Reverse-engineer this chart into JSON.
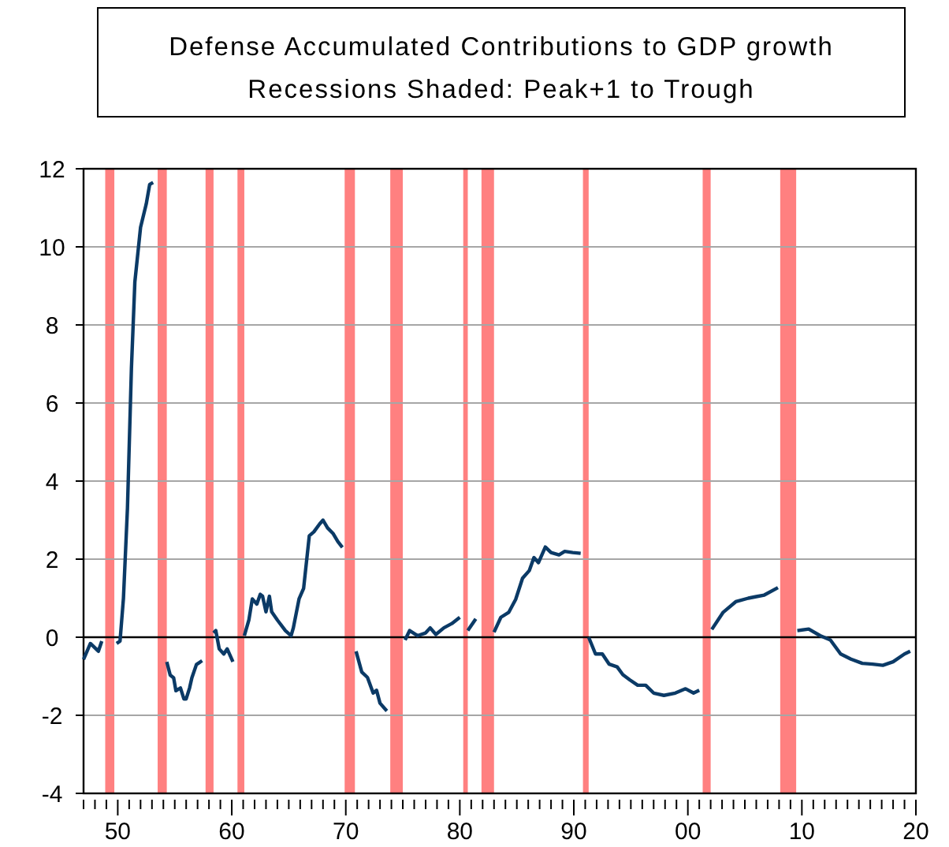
{
  "chart_data": {
    "type": "line",
    "title": "Defense Accumulated Contributions to GDP growth",
    "subtitle": "Recessions Shaded: Peak+1 to Trough",
    "series": [
      {
        "color": "#0b3a66",
        "x": [
          1947.0,
          1947.6,
          1948.1,
          1948.3,
          1948.6,
          1949.3,
          1949.9,
          1950.2,
          1950.5,
          1950.85,
          1951.2,
          1951.5,
          1952.0,
          1952.5,
          1952.8,
          1953.1,
          1953.9,
          1954.3,
          1954.6,
          1954.9,
          1955.1,
          1955.5,
          1955.8,
          1956.0,
          1956.3,
          1956.5,
          1956.9,
          1957.4,
          1958.0,
          1958.4,
          1958.6,
          1958.9,
          1959.3,
          1959.6,
          1960.1,
          1960.8,
          1961.1,
          1961.5,
          1961.8,
          1962.2,
          1962.5,
          1962.7,
          1963.0,
          1963.3,
          1963.5,
          1964.0,
          1964.7,
          1965.2,
          1965.4,
          1965.9,
          1966.3,
          1966.8,
          1967.2,
          1967.7,
          1968.0,
          1968.4,
          1968.9,
          1969.3,
          1969.7,
          1970.3,
          1970.9,
          1971.4,
          1971.9,
          1972.4,
          1972.7,
          1973.0,
          1973.6,
          1974.4,
          1975.2,
          1975.6,
          1976.3,
          1977.0,
          1977.4,
          1977.9,
          1978.6,
          1979.3,
          1980.0,
          1980.4,
          1980.7,
          1981.4,
          1982.4,
          1983.0,
          1983.6,
          1984.3,
          1984.9,
          1985.5,
          1986.1,
          1986.5,
          1986.9,
          1987.5,
          1988.0,
          1988.7,
          1989.2,
          1989.9,
          1990.6,
          1991.0,
          1991.3,
          1991.9,
          1992.5,
          1993.1,
          1993.8,
          1994.3,
          1994.9,
          1995.6,
          1996.3,
          1997.0,
          1997.9,
          1998.9,
          1999.8,
          2000.5,
          2001.0,
          2001.6,
          2002.1,
          2003.1,
          2004.2,
          2005.3,
          2006.0,
          2006.7,
          2007.9,
          2008.8,
          2009.6,
          2010.6,
          2011.6,
          2012.5,
          2013.4,
          2014.3,
          2015.3,
          2016.2,
          2017.1,
          2018.0,
          2019.0,
          2019.5
        ],
        "values": [
          -0.57,
          -0.16,
          -0.3,
          -0.36,
          -0.1,
          null,
          -0.16,
          -0.1,
          1.0,
          3.3,
          6.9,
          9.1,
          10.5,
          11.1,
          11.6,
          11.65,
          null,
          -0.63,
          -0.97,
          -1.04,
          -1.37,
          -1.3,
          -1.58,
          -1.58,
          -1.3,
          -1.04,
          -0.7,
          -0.6,
          null,
          0.11,
          0.17,
          -0.3,
          -0.43,
          -0.3,
          -0.63,
          null,
          0.04,
          0.44,
          0.98,
          0.85,
          1.1,
          1.05,
          0.65,
          1.05,
          0.65,
          0.44,
          0.17,
          0.04,
          0.24,
          0.98,
          1.25,
          2.6,
          2.7,
          2.9,
          3.0,
          2.8,
          2.65,
          2.45,
          2.3,
          null,
          -0.36,
          -0.89,
          -1.03,
          -1.43,
          -1.36,
          -1.69,
          -1.89,
          null,
          -0.07,
          0.17,
          0.04,
          0.11,
          0.24,
          0.07,
          0.24,
          0.35,
          0.51,
          null,
          0.17,
          0.47,
          null,
          0.13,
          0.51,
          0.64,
          0.97,
          1.51,
          1.71,
          2.04,
          1.91,
          2.31,
          2.17,
          2.11,
          2.2,
          2.17,
          2.15,
          null,
          0.0,
          -0.43,
          -0.43,
          -0.69,
          -0.76,
          -0.96,
          -1.09,
          -1.23,
          -1.23,
          -1.43,
          -1.49,
          -1.43,
          -1.32,
          -1.43,
          -1.36,
          null,
          0.2,
          0.64,
          0.91,
          1.0,
          1.04,
          1.08,
          1.27,
          null,
          0.17,
          0.21,
          0.04,
          -0.07,
          -0.43,
          -0.56,
          -0.67,
          -0.69,
          -0.72,
          -0.63,
          -0.43,
          -0.36
        ]
      }
    ],
    "xlim": [
      1947,
      2020
    ],
    "xticks": [
      {
        "value": 1947,
        "label": null
      },
      {
        "value": 1948,
        "label": null
      },
      {
        "value": 1949,
        "label": null
      },
      {
        "value": 1950,
        "label": "50"
      },
      {
        "value": 1951,
        "label": null
      },
      {
        "value": 1952,
        "label": null
      },
      {
        "value": 1953,
        "label": null
      },
      {
        "value": 1954,
        "label": null
      },
      {
        "value": 1955,
        "label": null
      },
      {
        "value": 1956,
        "label": null
      },
      {
        "value": 1957,
        "label": null
      },
      {
        "value": 1958,
        "label": null
      },
      {
        "value": 1959,
        "label": null
      },
      {
        "value": 1960,
        "label": "60"
      },
      {
        "value": 1961,
        "label": null
      },
      {
        "value": 1962,
        "label": null
      },
      {
        "value": 1963,
        "label": null
      },
      {
        "value": 1964,
        "label": null
      },
      {
        "value": 1965,
        "label": null
      },
      {
        "value": 1966,
        "label": null
      },
      {
        "value": 1967,
        "label": null
      },
      {
        "value": 1968,
        "label": null
      },
      {
        "value": 1969,
        "label": null
      },
      {
        "value": 1970,
        "label": "70"
      },
      {
        "value": 1971,
        "label": null
      },
      {
        "value": 1972,
        "label": null
      },
      {
        "value": 1973,
        "label": null
      },
      {
        "value": 1974,
        "label": null
      },
      {
        "value": 1975,
        "label": null
      },
      {
        "value": 1976,
        "label": null
      },
      {
        "value": 1977,
        "label": null
      },
      {
        "value": 1978,
        "label": null
      },
      {
        "value": 1979,
        "label": null
      },
      {
        "value": 1980,
        "label": "80"
      },
      {
        "value": 1981,
        "label": null
      },
      {
        "value": 1982,
        "label": null
      },
      {
        "value": 1983,
        "label": null
      },
      {
        "value": 1984,
        "label": null
      },
      {
        "value": 1985,
        "label": null
      },
      {
        "value": 1986,
        "label": null
      },
      {
        "value": 1987,
        "label": null
      },
      {
        "value": 1988,
        "label": null
      },
      {
        "value": 1989,
        "label": null
      },
      {
        "value": 1990,
        "label": "90"
      },
      {
        "value": 1991,
        "label": null
      },
      {
        "value": 1992,
        "label": null
      },
      {
        "value": 1993,
        "label": null
      },
      {
        "value": 1994,
        "label": null
      },
      {
        "value": 1995,
        "label": null
      },
      {
        "value": 1996,
        "label": null
      },
      {
        "value": 1997,
        "label": null
      },
      {
        "value": 1998,
        "label": null
      },
      {
        "value": 1999,
        "label": null
      },
      {
        "value": 2000,
        "label": "00"
      },
      {
        "value": 2001,
        "label": null
      },
      {
        "value": 2002,
        "label": null
      },
      {
        "value": 2003,
        "label": null
      },
      {
        "value": 2004,
        "label": null
      },
      {
        "value": 2005,
        "label": null
      },
      {
        "value": 2006,
        "label": null
      },
      {
        "value": 2007,
        "label": null
      },
      {
        "value": 2008,
        "label": null
      },
      {
        "value": 2009,
        "label": null
      },
      {
        "value": 2010,
        "label": "10"
      },
      {
        "value": 2011,
        "label": null
      },
      {
        "value": 2012,
        "label": null
      },
      {
        "value": 2013,
        "label": null
      },
      {
        "value": 2014,
        "label": null
      },
      {
        "value": 2015,
        "label": null
      },
      {
        "value": 2016,
        "label": null
      },
      {
        "value": 2017,
        "label": null
      },
      {
        "value": 2018,
        "label": null
      },
      {
        "value": 2019,
        "label": null
      },
      {
        "value": 2020,
        "label": "20"
      }
    ],
    "ylim": [
      -4,
      12
    ],
    "yticks": [
      -4,
      -2,
      0,
      2,
      4,
      6,
      8,
      10,
      12
    ],
    "grid": "y",
    "ref_lines": [
      {
        "axis": "y",
        "value": 0,
        "color": "#000000"
      }
    ],
    "bands": [
      {
        "axis": "x",
        "from": 1948.9,
        "to": 1949.7,
        "color": "#ff8080"
      },
      {
        "axis": "x",
        "from": 1953.5,
        "to": 1954.3,
        "color": "#ff8080"
      },
      {
        "axis": "x",
        "from": 1957.7,
        "to": 1958.4,
        "color": "#ff8080"
      },
      {
        "axis": "x",
        "from": 1960.5,
        "to": 1961.1,
        "color": "#ff8080"
      },
      {
        "axis": "x",
        "from": 1969.9,
        "to": 1970.8,
        "color": "#ff8080"
      },
      {
        "axis": "x",
        "from": 1973.9,
        "to": 1975.0,
        "color": "#ff8080"
      },
      {
        "axis": "x",
        "from": 1980.3,
        "to": 1980.7,
        "color": "#ff8080"
      },
      {
        "axis": "x",
        "from": 1981.9,
        "to": 1983.0,
        "color": "#ff8080"
      },
      {
        "axis": "x",
        "from": 1990.8,
        "to": 1991.3,
        "color": "#ff8080"
      },
      {
        "axis": "x",
        "from": 2001.3,
        "to": 2002.0,
        "color": "#ff8080"
      },
      {
        "axis": "x",
        "from": 2008.1,
        "to": 2009.5,
        "color": "#ff8080"
      }
    ]
  }
}
